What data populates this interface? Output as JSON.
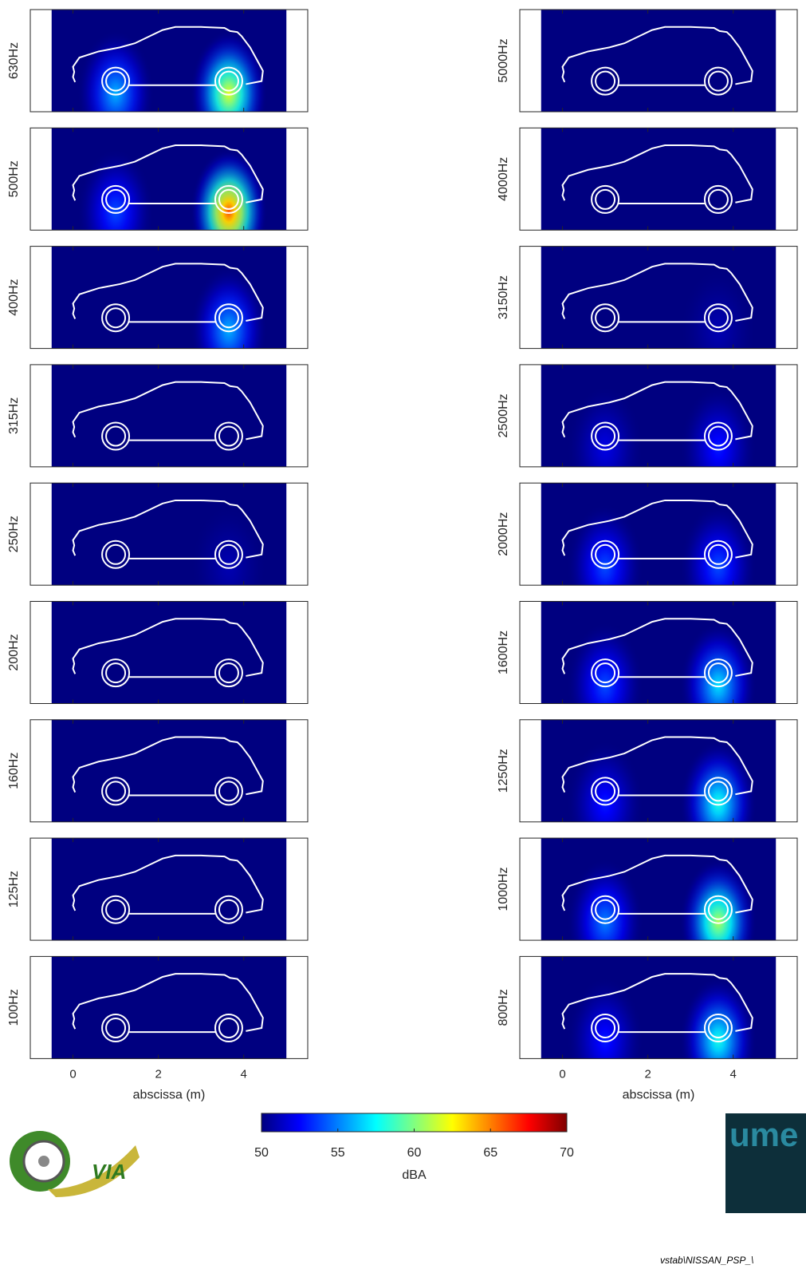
{
  "chart_data": [
    {
      "type": "heatmap",
      "label": "630Hz",
      "xlim": [
        -1,
        5.5
      ],
      "xticks": [
        0,
        2,
        4
      ],
      "data_xlim": [
        -0.5,
        5
      ],
      "sources": [
        {
          "x": 1,
          "level": 56
        },
        {
          "x": 3.65,
          "level": 62
        }
      ]
    },
    {
      "type": "heatmap",
      "label": "500Hz",
      "xlim": [
        -1,
        5.5
      ],
      "xticks": [
        0,
        2,
        4
      ],
      "data_xlim": [
        -0.5,
        5
      ],
      "sources": [
        {
          "x": 1,
          "level": 54
        },
        {
          "x": 3.65,
          "level": 66
        }
      ]
    },
    {
      "type": "heatmap",
      "label": "400Hz",
      "xlim": [
        -1,
        5.5
      ],
      "xticks": [
        0,
        2,
        4
      ],
      "data_xlim": [
        -0.5,
        5
      ],
      "sources": [
        {
          "x": 3.65,
          "level": 56
        }
      ]
    },
    {
      "type": "heatmap",
      "label": "315Hz",
      "xlim": [
        -1,
        5.5
      ],
      "xticks": [
        0,
        2,
        4
      ],
      "data_xlim": [
        -0.5,
        5
      ],
      "sources": []
    },
    {
      "type": "heatmap",
      "label": "250Hz",
      "xlim": [
        -1,
        5.5
      ],
      "xticks": [
        0,
        2,
        4
      ],
      "data_xlim": [
        -0.5,
        5
      ],
      "sources": [
        {
          "x": 3.65,
          "level": 51
        }
      ]
    },
    {
      "type": "heatmap",
      "label": "200Hz",
      "xlim": [
        -1,
        5.5
      ],
      "xticks": [
        0,
        2,
        4
      ],
      "data_xlim": [
        -0.5,
        5
      ],
      "sources": []
    },
    {
      "type": "heatmap",
      "label": "160Hz",
      "xlim": [
        -1,
        5.5
      ],
      "xticks": [
        0,
        2,
        4
      ],
      "data_xlim": [
        -0.5,
        5
      ],
      "sources": []
    },
    {
      "type": "heatmap",
      "label": "125Hz",
      "xlim": [
        -1,
        5.5
      ],
      "xticks": [
        0,
        2,
        4
      ],
      "data_xlim": [
        -0.5,
        5
      ],
      "sources": []
    },
    {
      "type": "heatmap",
      "label": "100Hz",
      "xlim": [
        -1,
        5.5
      ],
      "xticks": [
        0,
        2,
        4
      ],
      "data_xlim": [
        -0.5,
        5
      ],
      "sources": [],
      "xlabel": "abscissa (m)"
    },
    {
      "type": "heatmap",
      "label": "5000Hz",
      "xlim": [
        -1,
        5.5
      ],
      "xticks": [
        0,
        2,
        4
      ],
      "data_xlim": [
        -0.5,
        5
      ],
      "sources": []
    },
    {
      "type": "heatmap",
      "label": "4000Hz",
      "xlim": [
        -1,
        5.5
      ],
      "xticks": [
        0,
        2,
        4
      ],
      "data_xlim": [
        -0.5,
        5
      ],
      "sources": []
    },
    {
      "type": "heatmap",
      "label": "3150Hz",
      "xlim": [
        -1,
        5.5
      ],
      "xticks": [
        0,
        2,
        4
      ],
      "data_xlim": [
        -0.5,
        5
      ],
      "sources": [
        {
          "x": 3.65,
          "level": 51
        }
      ]
    },
    {
      "type": "heatmap",
      "label": "2500Hz",
      "xlim": [
        -1,
        5.5
      ],
      "xticks": [
        0,
        2,
        4
      ],
      "data_xlim": [
        -0.5,
        5
      ],
      "sources": [
        {
          "x": 1,
          "level": 52
        },
        {
          "x": 3.65,
          "level": 53
        }
      ]
    },
    {
      "type": "heatmap",
      "label": "2000Hz",
      "xlim": [
        -1,
        5.5
      ],
      "xticks": [
        0,
        2,
        4
      ],
      "data_xlim": [
        -0.5,
        5
      ],
      "sources": [
        {
          "x": 1,
          "level": 54
        },
        {
          "x": 3.65,
          "level": 54
        }
      ]
    },
    {
      "type": "heatmap",
      "label": "1600Hz",
      "xlim": [
        -1,
        5.5
      ],
      "xticks": [
        0,
        2,
        4
      ],
      "data_xlim": [
        -0.5,
        5
      ],
      "sources": [
        {
          "x": 1,
          "level": 54
        },
        {
          "x": 3.65,
          "level": 57
        }
      ]
    },
    {
      "type": "heatmap",
      "label": "1250Hz",
      "xlim": [
        -1,
        5.5
      ],
      "xticks": [
        0,
        2,
        4
      ],
      "data_xlim": [
        -0.5,
        5
      ],
      "sources": [
        {
          "x": 1,
          "level": 53
        },
        {
          "x": 3.65,
          "level": 58
        }
      ]
    },
    {
      "type": "heatmap",
      "label": "1000Hz",
      "xlim": [
        -1,
        5.5
      ],
      "xticks": [
        0,
        2,
        4
      ],
      "data_xlim": [
        -0.5,
        5
      ],
      "sources": [
        {
          "x": 1,
          "level": 55
        },
        {
          "x": 3.65,
          "level": 61
        }
      ]
    },
    {
      "type": "heatmap",
      "label": "800Hz",
      "xlim": [
        -1,
        5.5
      ],
      "xticks": [
        0,
        2,
        4
      ],
      "data_xlim": [
        -0.5,
        5
      ],
      "sources": [
        {
          "x": 1,
          "level": 53
        },
        {
          "x": 3.65,
          "level": 58
        }
      ],
      "xlabel": "abscissa (m)"
    },
    {
      "type": "colorbar",
      "colormap": "jet",
      "clim": [
        50,
        70
      ],
      "ticks": [
        50,
        55,
        60,
        65,
        70
      ],
      "label": "dBA"
    }
  ],
  "logo_left": "VIA",
  "logo_right": "ume",
  "footer": "vstab\\NISSAN_PSP_\\"
}
